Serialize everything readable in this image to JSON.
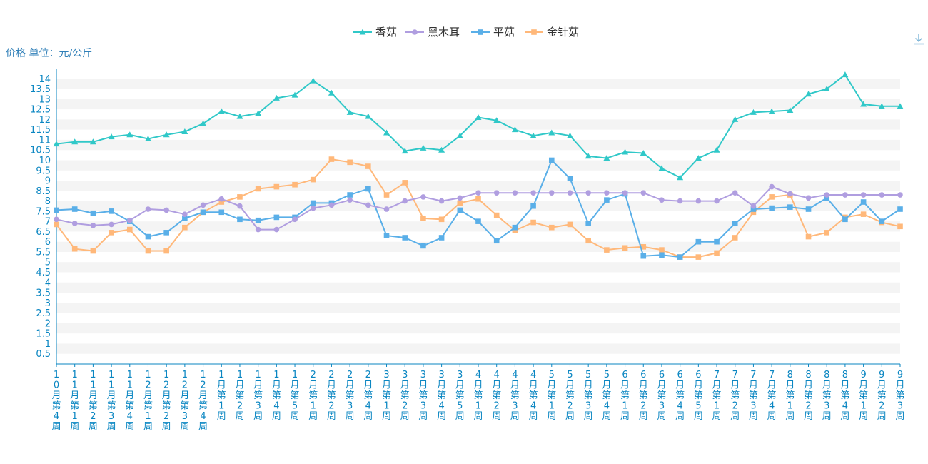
{
  "colors": {
    "xianggu": "#30c8c8",
    "heimuer": "#b09ee0",
    "pinggu": "#5aafe8",
    "jinzhengu": "#ffb87a",
    "axis": "#0a86c2",
    "band": "#f4f4f4"
  },
  "toolbar": {
    "download_icon": "download-icon"
  },
  "chart_data": {
    "type": "line",
    "ylabel": "价格 单位：元/公斤",
    "legend_position": "top-center",
    "grid": true,
    "ylim": [
      0,
      14.5
    ],
    "yticks": [
      "0.5",
      "1",
      "1.5",
      "2",
      "2.5",
      "3",
      "3.5",
      "4",
      "4.5",
      "5",
      "5.5",
      "6",
      "6.5",
      "7",
      "7.5",
      "8",
      "8.5",
      "9",
      "9.5",
      "10",
      "10.5",
      "11",
      "11.5",
      "12",
      "12.5",
      "13",
      "13.5",
      "14"
    ],
    "categories": [
      "10月第4周",
      "11月第1周",
      "11月第2周",
      "11月第3周",
      "11月第4周",
      "12月第1周",
      "12月第2周",
      "12月第3周",
      "12月第4周",
      "1月第1周",
      "1月第2周",
      "1月第3周",
      "1月第4周",
      "1月第5周",
      "2月第1周",
      "2月第2周",
      "2月第3周",
      "2月第4周",
      "3月第1周",
      "3月第2周",
      "3月第3周",
      "3月第4周",
      "3月第5周",
      "4月第1周",
      "4月第2周",
      "4月第3周",
      "4月第4周",
      "5月第1周",
      "5月第2周",
      "5月第3周",
      "5月第4周",
      "6月第1周",
      "6月第2周",
      "6月第3周",
      "6月第4周",
      "6月第5周",
      "7月第1周",
      "7月第2周",
      "7月第3周",
      "7月第4周",
      "8月第1周",
      "8月第2周",
      "8月第3周",
      "8月第4周",
      "9月第1周",
      "9月第2周",
      "9月第3周"
    ],
    "series": [
      {
        "name": "香菇",
        "marker": "triangle",
        "values": [
          10.8,
          10.9,
          10.9,
          11.15,
          11.25,
          11.05,
          11.25,
          11.4,
          11.8,
          12.4,
          12.15,
          12.3,
          13.05,
          13.2,
          13.9,
          13.3,
          12.35,
          12.15,
          11.35,
          10.45,
          10.6,
          10.5,
          11.2,
          12.1,
          11.95,
          11.5,
          11.2,
          11.35,
          11.2,
          10.2,
          10.1,
          10.4,
          10.35,
          9.6,
          9.15,
          10.1,
          10.5,
          12.0,
          12.35,
          12.4,
          12.45,
          13.25,
          13.5,
          14.2,
          12.75,
          12.65,
          12.65
        ]
      },
      {
        "name": "黑木耳",
        "marker": "circle",
        "values": [
          7.1,
          6.9,
          6.8,
          6.85,
          7.05,
          7.6,
          7.55,
          7.35,
          7.8,
          8.1,
          7.75,
          6.6,
          6.6,
          7.1,
          7.65,
          7.8,
          8.05,
          7.8,
          7.6,
          8.0,
          8.2,
          8.0,
          8.15,
          8.4,
          8.4,
          8.4,
          8.4,
          8.4,
          8.4,
          8.4,
          8.4,
          8.4,
          8.4,
          8.05,
          8.0,
          8.0,
          8.0,
          8.4,
          7.75,
          8.7,
          8.35,
          8.15,
          8.3,
          8.3,
          8.3,
          8.3,
          8.3
        ]
      },
      {
        "name": "平菇",
        "marker": "square",
        "values": [
          7.55,
          7.6,
          7.4,
          7.5,
          7.0,
          6.25,
          6.45,
          7.15,
          7.45,
          7.45,
          7.1,
          7.05,
          7.2,
          7.2,
          7.9,
          7.9,
          8.3,
          8.6,
          6.3,
          6.2,
          5.8,
          6.2,
          7.55,
          7.0,
          6.05,
          6.7,
          7.75,
          10.0,
          9.1,
          6.9,
          8.05,
          8.35,
          5.3,
          5.35,
          5.25,
          6.0,
          6.0,
          6.9,
          7.6,
          7.65,
          7.7,
          7.6,
          8.15,
          7.1,
          7.95,
          7.0,
          7.6
        ]
      },
      {
        "name": "金针菇",
        "marker": "square",
        "values": [
          6.85,
          5.65,
          5.55,
          6.45,
          6.6,
          5.55,
          5.55,
          6.7,
          7.45,
          7.95,
          8.2,
          8.6,
          8.7,
          8.8,
          9.05,
          10.05,
          9.9,
          9.7,
          8.3,
          8.9,
          7.15,
          7.1,
          7.9,
          8.1,
          7.3,
          6.55,
          6.95,
          6.7,
          6.85,
          6.05,
          5.6,
          5.7,
          5.75,
          5.6,
          5.25,
          5.25,
          5.45,
          6.2,
          7.45,
          8.2,
          8.3,
          6.25,
          6.45,
          7.2,
          7.35,
          6.95,
          6.75
        ]
      }
    ]
  }
}
